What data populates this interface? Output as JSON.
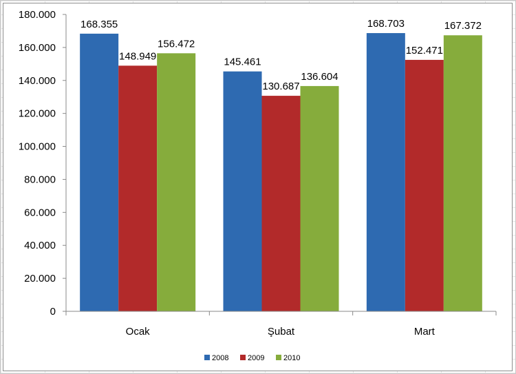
{
  "colors": {
    "s2008": "#2E6AB1",
    "s2009": "#B22A2A",
    "s2010": "#86AC3C"
  },
  "chart_data": {
    "type": "bar",
    "categories": [
      "Ocak",
      "Şubat",
      "Mart"
    ],
    "series": [
      {
        "name": "2008",
        "values": [
          168355,
          145461,
          168703
        ],
        "labels": [
          "168.355",
          "145.461",
          "168.703"
        ]
      },
      {
        "name": "2009",
        "values": [
          148949,
          130687,
          152471
        ],
        "labels": [
          "148.949",
          "130.687",
          "152.471"
        ]
      },
      {
        "name": "2010",
        "values": [
          156472,
          136604,
          167372
        ],
        "labels": [
          "156.472",
          "136.604",
          "167.372"
        ]
      }
    ],
    "ylim": [
      0,
      180000
    ],
    "yticks": [
      0,
      20000,
      40000,
      60000,
      80000,
      100000,
      120000,
      140000,
      160000,
      180000
    ],
    "ytick_labels": [
      "0",
      "20.000",
      "40.000",
      "60.000",
      "80.000",
      "100.000",
      "120.000",
      "140.000",
      "160.000",
      "180.000"
    ],
    "title": "",
    "xlabel": "",
    "ylabel": "",
    "grid": false,
    "legend": "bottom"
  }
}
